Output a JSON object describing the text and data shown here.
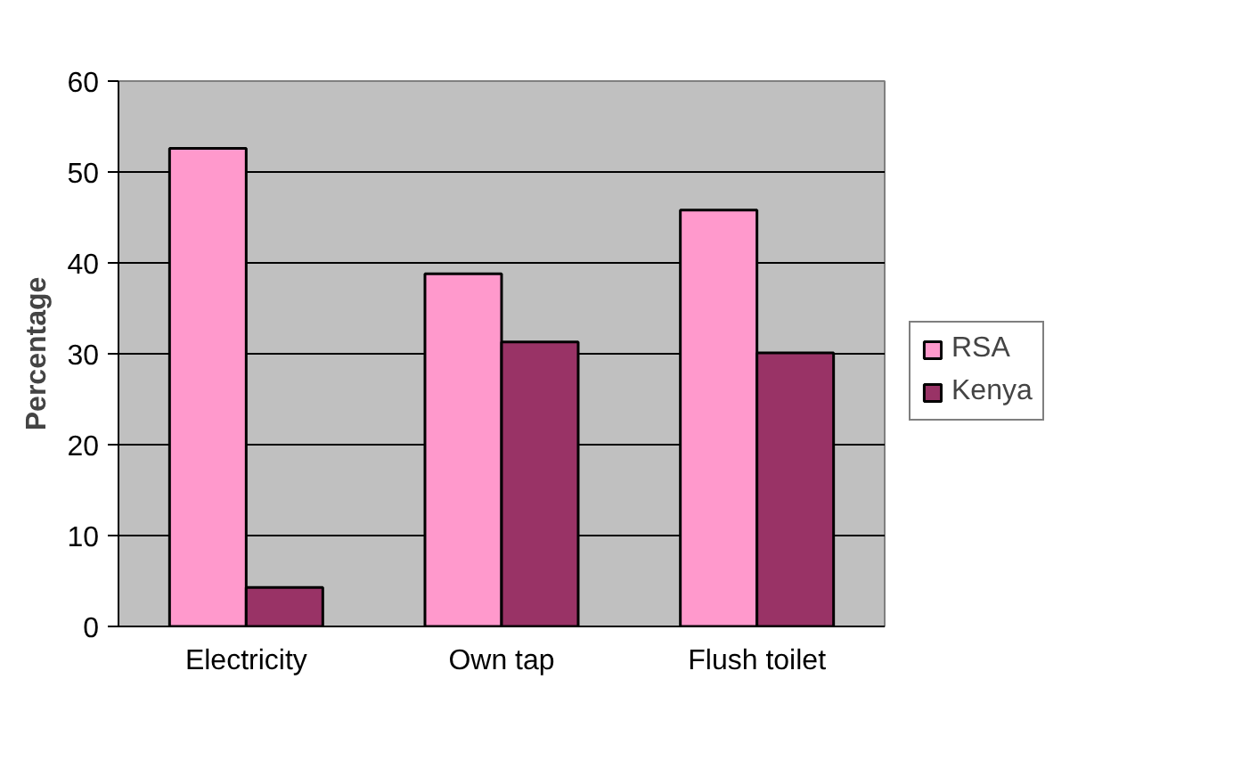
{
  "chart_data": {
    "type": "bar",
    "ylabel": "Percentage",
    "categories": [
      "Electricity",
      "Own tap",
      "Flush toilet"
    ],
    "series": [
      {
        "name": "RSA",
        "color": "#ff99cc",
        "values": [
          52.6,
          38.8,
          45.8
        ]
      },
      {
        "name": "Kenya",
        "color": "#993366",
        "values": [
          4.3,
          31.3,
          30.1
        ]
      }
    ],
    "ylim": [
      0,
      60
    ],
    "yticks": [
      0,
      10,
      20,
      30,
      40,
      50,
      60
    ],
    "grid": "y",
    "legend": "right"
  }
}
